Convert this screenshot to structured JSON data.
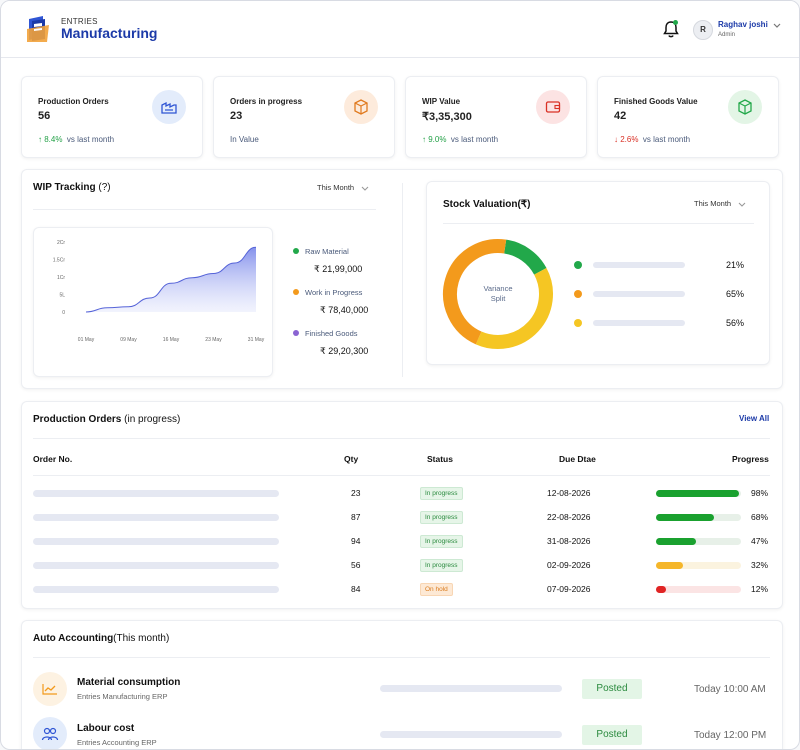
{
  "header": {
    "brand_small": "ENTRIES",
    "brand_big": "Manufacturing",
    "user_initial": "R",
    "user_name": "Raghav joshi",
    "user_role": "Admin"
  },
  "kpis": [
    {
      "title": "Production Orders",
      "value": "56",
      "delta": "↑ 8.4%",
      "delta_dir": "up",
      "foot": "vs last month",
      "icon": "factory-icon"
    },
    {
      "title": "Orders in progress",
      "value": "23",
      "delta": "",
      "delta_dir": "",
      "foot": "In Value",
      "icon": "box-icon"
    },
    {
      "title": "WIP Value",
      "value": "₹3,35,300",
      "delta": "↑ 9.0%",
      "delta_dir": "up",
      "foot": "vs last month",
      "icon": "wallet-icon"
    },
    {
      "title": "Finished Goods Value",
      "value": "42",
      "delta": "↓ 2.6%",
      "delta_dir": "down",
      "foot": "vs last month",
      "icon": "cube-icon"
    }
  ],
  "wip": {
    "title": "WIP Tracking",
    "title_suffix": "(?)",
    "period": "This Month",
    "legend": [
      {
        "label": "Raw Material",
        "value": "₹ 21,99,000",
        "color": "#22a84a"
      },
      {
        "label": "Work in Progress",
        "value": "₹ 78,40,000",
        "color": "#f39a1c"
      },
      {
        "label": "Finished Goods",
        "value": "₹ 29,20,300",
        "color": "#8a63d2"
      }
    ]
  },
  "chart_data": {
    "type": "area",
    "x": [
      "01 May",
      "09 May",
      "16 May",
      "23 May",
      "31 May"
    ],
    "yticks": [
      "2Cr",
      "1.5Cr",
      "1Cr",
      "5L",
      "0"
    ],
    "ylim": [
      0,
      2
    ],
    "series": [
      {
        "points": [
          [
            0,
            0.0
          ],
          [
            0.5,
            0.12
          ],
          [
            1,
            0.15
          ],
          [
            1.5,
            0.4
          ],
          [
            2,
            0.82
          ],
          [
            2.5,
            0.98
          ],
          [
            3,
            1.1
          ],
          [
            3.5,
            1.4
          ],
          [
            4,
            1.85
          ]
        ]
      }
    ]
  },
  "stock": {
    "title": "Stock Valuation(₹)",
    "period": "This Month",
    "center_label_1": "Variance",
    "center_label_2": "Split",
    "slices": [
      {
        "value": 21,
        "label": "21%",
        "color": "#22a84a"
      },
      {
        "value": 65,
        "label": "65%",
        "color": "#f39a1c"
      },
      {
        "value": 56,
        "label": "56%",
        "color": "#f5c623"
      }
    ]
  },
  "orders": {
    "title": "Production Orders",
    "title_suffix": "(in progress)",
    "view_all": "View All",
    "columns": [
      "Order No.",
      "Qty",
      "Status",
      "Due Dtae",
      "Progress"
    ],
    "rows": [
      {
        "qty": "23",
        "status": "In progress",
        "status_kind": "ip",
        "due": "12-08-2026",
        "progress": 98,
        "progress_label": "98%",
        "color": "#1aa12f",
        "track": "#e7f0e8"
      },
      {
        "qty": "87",
        "status": "In progress",
        "status_kind": "ip",
        "due": "22-08-2026",
        "progress": 68,
        "progress_label": "68%",
        "color": "#1aa12f",
        "track": "#e7f0e8"
      },
      {
        "qty": "94",
        "status": "In progress",
        "status_kind": "ip",
        "due": "31-08-2026",
        "progress": 47,
        "progress_label": "47%",
        "color": "#1aa12f",
        "track": "#e7f0e8"
      },
      {
        "qty": "56",
        "status": "In progress",
        "status_kind": "ip",
        "due": "02-09-2026",
        "progress": 32,
        "progress_label": "32%",
        "color": "#f5b62a",
        "track": "#fbf3df"
      },
      {
        "qty": "84",
        "status": "On hold",
        "status_kind": "oh",
        "due": "07-09-2026",
        "progress": 12,
        "progress_label": "12%",
        "color": "#e02424",
        "track": "#fbe4e4"
      }
    ]
  },
  "accounting": {
    "title": "Auto Accounting",
    "title_suffix": "(This month)",
    "items": [
      {
        "title": "Material consumption",
        "sub": "Entries Manufacturing ERP",
        "status": "Posted",
        "time": "Today 10:00 AM",
        "icon": "trend-chart-icon"
      },
      {
        "title": "Labour cost",
        "sub": "Entries Accounting ERP",
        "status": "Posted",
        "time": "Today 12:00 PM",
        "icon": "people-icon"
      }
    ]
  }
}
